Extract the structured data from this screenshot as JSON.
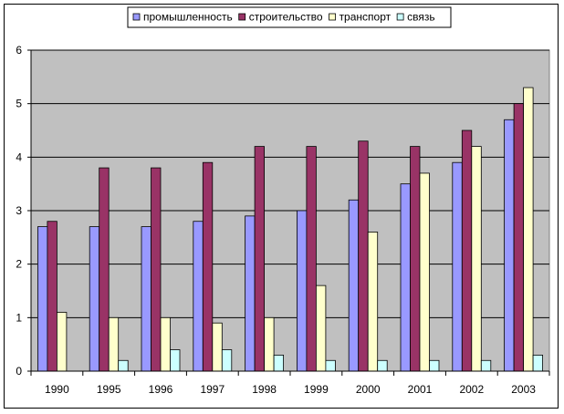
{
  "chart_data": {
    "type": "bar",
    "categories": [
      "1990",
      "1995",
      "1996",
      "1997",
      "1998",
      "1999",
      "2000",
      "2001",
      "2002",
      "2003"
    ],
    "series": [
      {
        "name": "промышленность",
        "color": "#9999ff",
        "values": [
          2.7,
          2.7,
          2.7,
          2.8,
          2.9,
          3.0,
          3.2,
          3.5,
          3.9,
          4.7
        ]
      },
      {
        "name": "строительство",
        "color": "#993366",
        "values": [
          2.8,
          3.8,
          3.8,
          3.9,
          4.2,
          4.2,
          4.3,
          4.2,
          4.5,
          5.0
        ]
      },
      {
        "name": "транспорт",
        "color": "#ffffcc",
        "values": [
          1.1,
          1.0,
          1.0,
          0.9,
          1.0,
          1.6,
          2.6,
          3.7,
          4.2,
          5.3
        ]
      },
      {
        "name": "связь",
        "color": "#ccffff",
        "values": [
          0.0,
          0.2,
          0.4,
          0.4,
          0.3,
          0.2,
          0.2,
          0.2,
          0.2,
          0.3
        ]
      }
    ],
    "yticks": [
      "0",
      "1",
      "2",
      "3",
      "4",
      "5",
      "6"
    ],
    "ylim": [
      0,
      6
    ],
    "grid": true,
    "plot_background": "#c0c0c0",
    "legend_position": "top"
  }
}
